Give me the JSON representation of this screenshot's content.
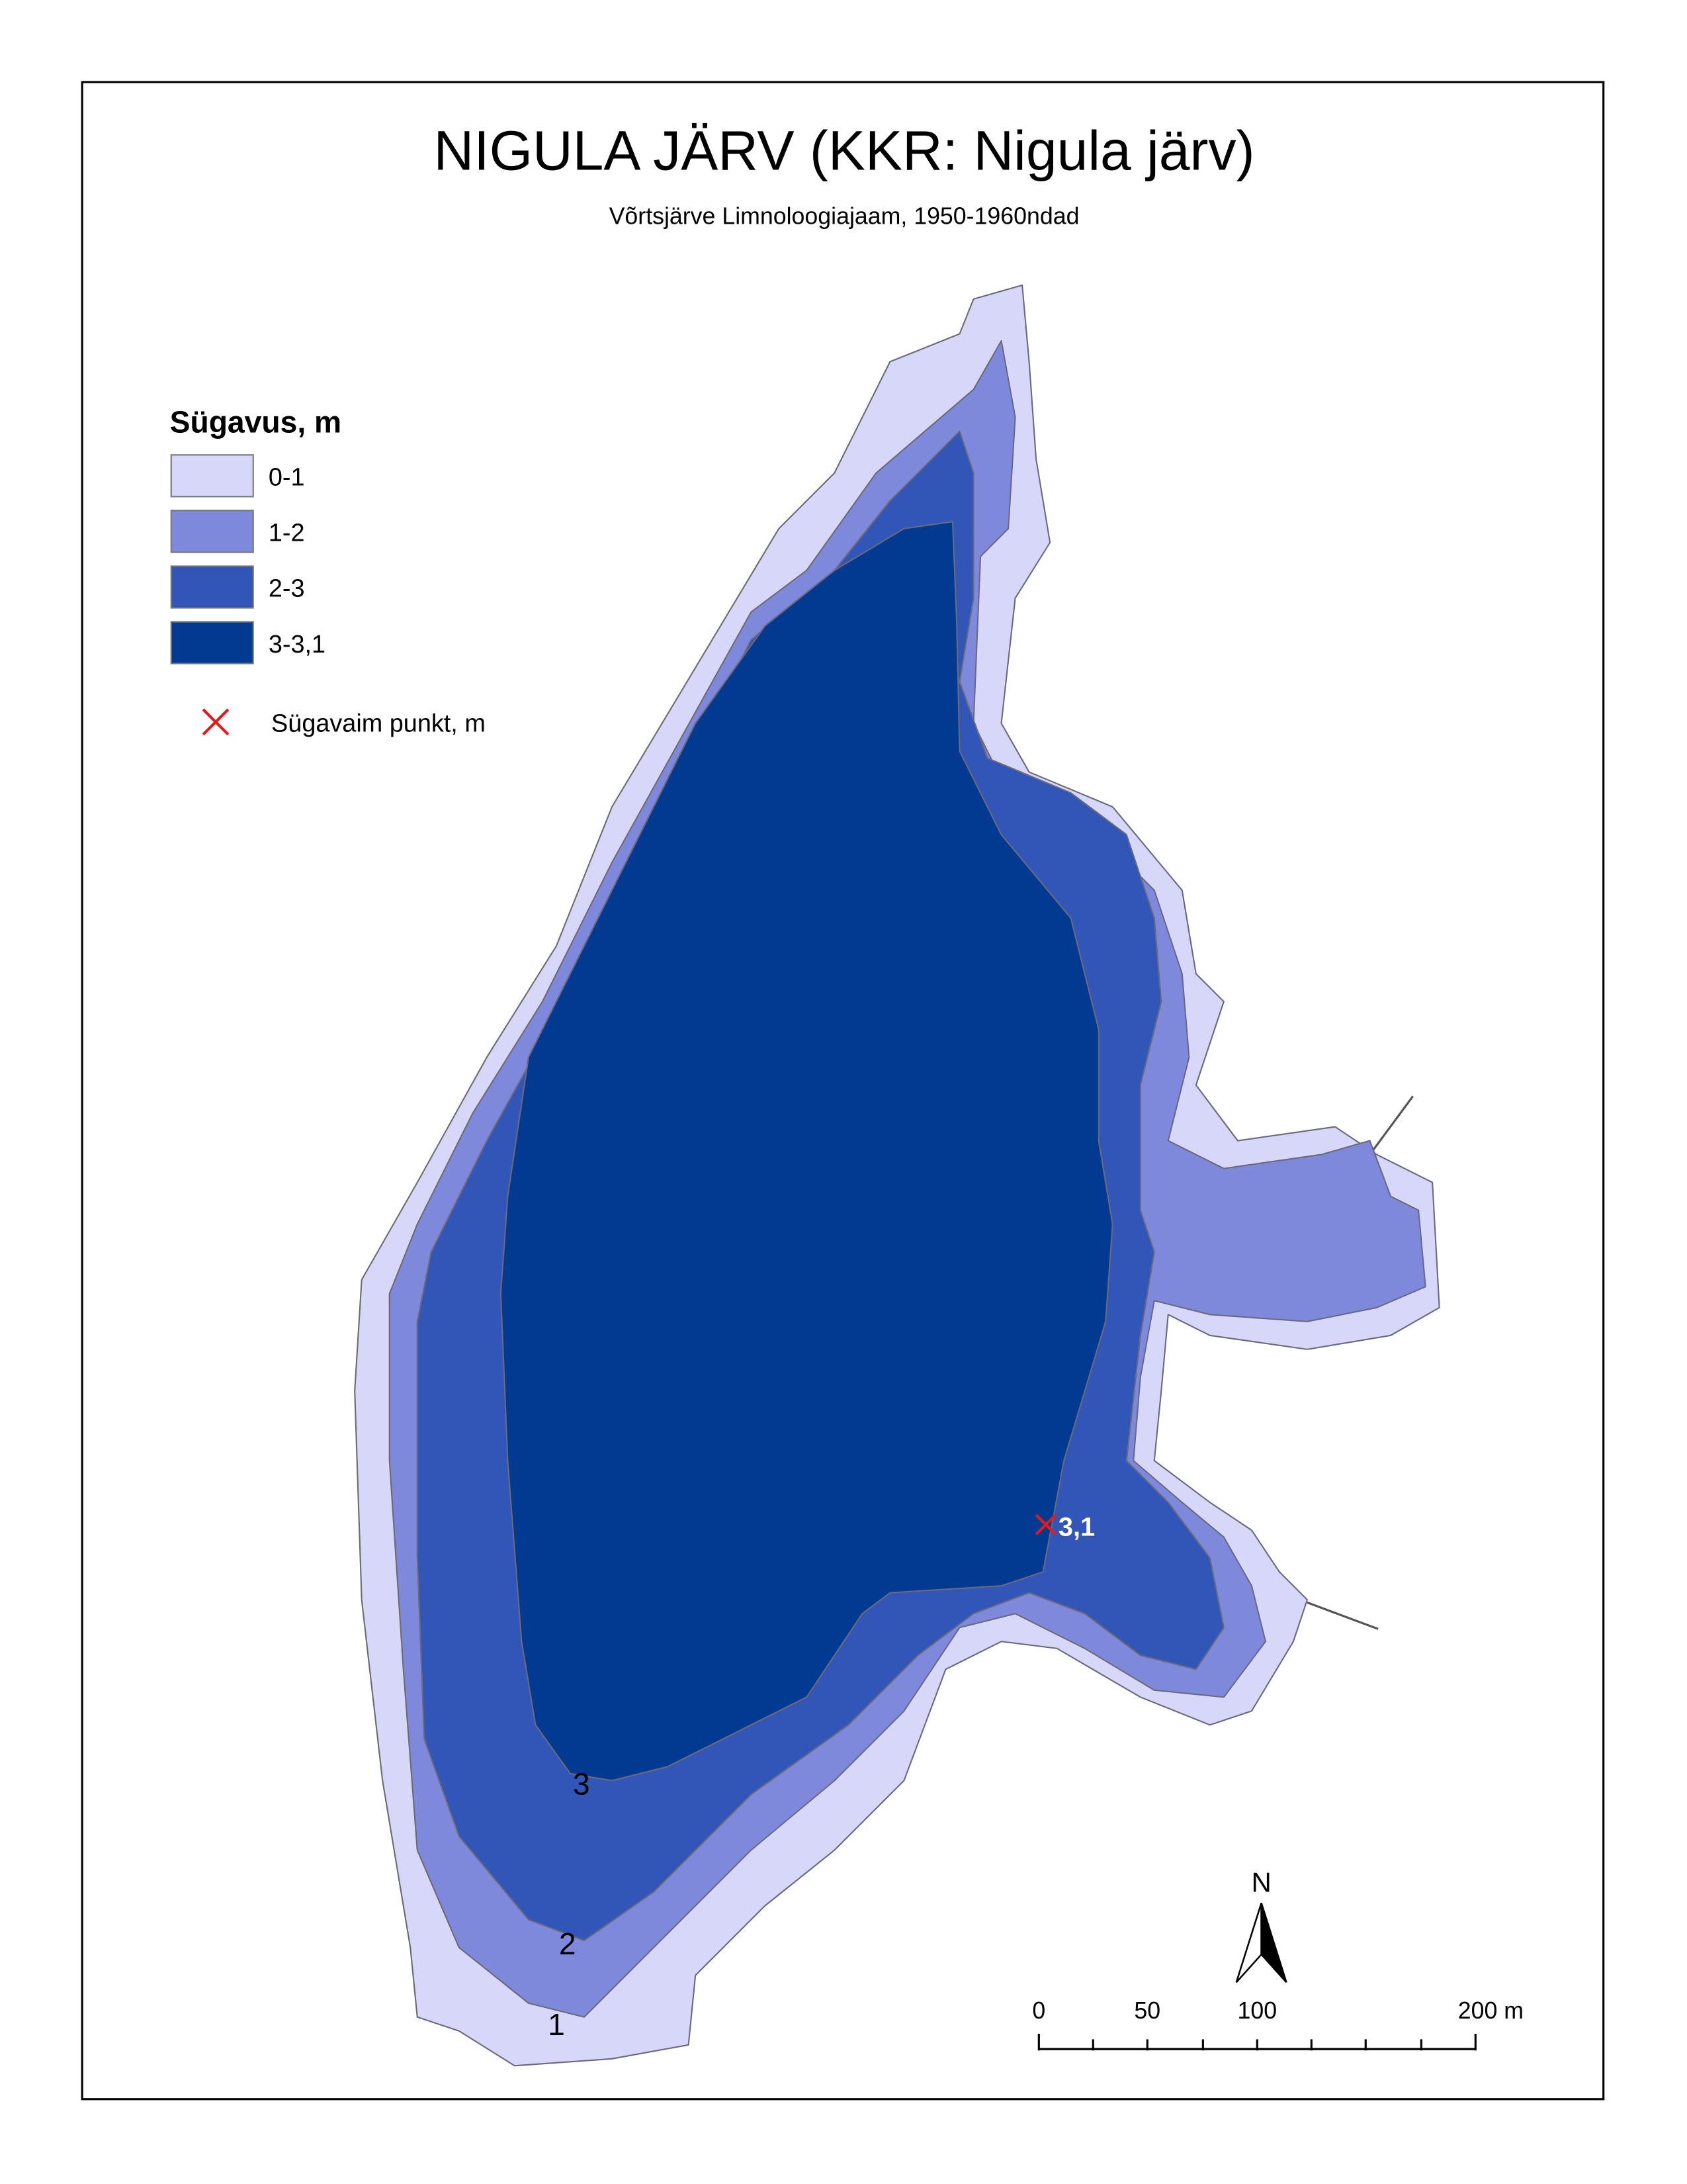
{
  "title": "NIGULA JÄRV (KKR: Nigula järv)",
  "subtitle": "Võrtsjärve Limnoloogiajaam, 1950-1960ndad",
  "legend": {
    "title": "Sügavus, m",
    "classes": [
      {
        "label": "0-1",
        "color": "#d7d7f9"
      },
      {
        "label": "1-2",
        "color": "#7f89dc"
      },
      {
        "label": "2-3",
        "color": "#3255b8"
      },
      {
        "label": "3-3,1",
        "color": "#033a91"
      }
    ],
    "deepest_point": "Sügavaim punkt, m"
  },
  "contour_labels": [
    "3",
    "2",
    "1"
  ],
  "deepest_value": "3,1",
  "north": "N",
  "scale_bar": {
    "labels": [
      "0",
      "50",
      "100",
      "200 m"
    ]
  }
}
